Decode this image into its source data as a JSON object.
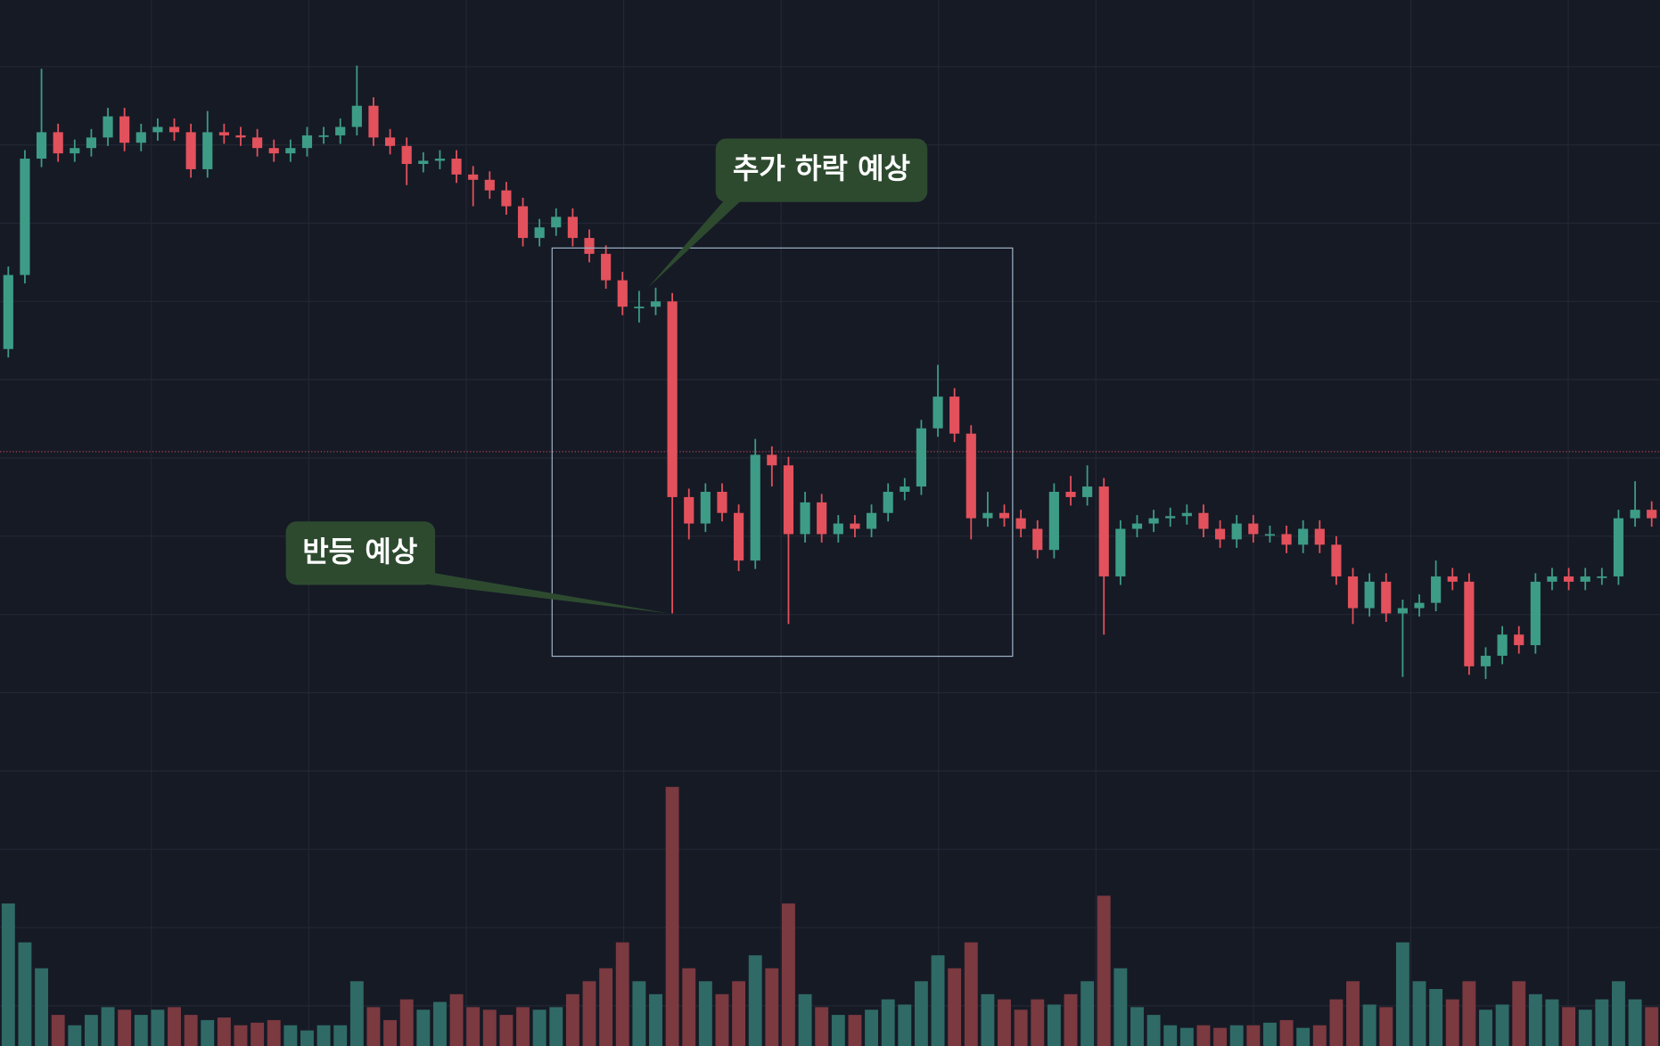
{
  "chart_data": {
    "type": "candlestick",
    "annotations": [
      "추가 하락 예상",
      "반등 예상"
    ],
    "open": [
      670,
      740,
      850,
      875,
      855,
      860,
      870,
      890,
      865,
      875,
      880,
      875,
      840,
      875,
      872,
      870,
      860,
      855,
      860,
      872,
      872,
      880,
      900,
      870,
      862,
      845,
      848,
      850,
      835,
      830,
      820,
      805,
      775,
      785,
      795,
      775,
      760,
      735,
      710,
      710,
      715,
      530,
      505,
      535,
      515,
      470,
      570,
      560,
      495,
      525,
      495,
      505,
      500,
      515,
      535,
      540,
      595,
      625,
      590,
      510,
      515,
      510,
      500,
      480,
      535,
      530,
      540,
      455,
      500,
      505,
      510,
      512,
      515,
      500,
      490,
      505,
      495,
      495,
      485,
      500,
      485,
      455,
      425,
      450,
      420,
      425,
      430,
      455,
      450,
      370,
      380,
      400,
      390,
      450,
      455,
      450,
      455,
      455,
      510,
      518
    ],
    "high": [
      748,
      858,
      935,
      883,
      868,
      878,
      898,
      898,
      883,
      888,
      888,
      883,
      895,
      883,
      880,
      878,
      868,
      868,
      880,
      880,
      888,
      938,
      908,
      878,
      870,
      856,
      858,
      858,
      843,
      838,
      828,
      813,
      793,
      803,
      803,
      783,
      768,
      743,
      725,
      728,
      723,
      538,
      543,
      543,
      523,
      585,
      578,
      568,
      535,
      533,
      513,
      513,
      523,
      543,
      548,
      603,
      655,
      633,
      598,
      535,
      523,
      518,
      508,
      543,
      550,
      560,
      548,
      508,
      513,
      518,
      520,
      523,
      523,
      508,
      513,
      513,
      503,
      503,
      508,
      508,
      493,
      463,
      458,
      458,
      433,
      438,
      470,
      463,
      458,
      388,
      408,
      408,
      458,
      463,
      463,
      463,
      463,
      518,
      545,
      526
    ],
    "low": [
      662,
      732,
      842,
      847,
      847,
      852,
      862,
      857,
      857,
      867,
      867,
      832,
      832,
      864,
      862,
      852,
      847,
      847,
      852,
      864,
      864,
      872,
      862,
      854,
      825,
      837,
      840,
      827,
      805,
      812,
      797,
      767,
      767,
      777,
      767,
      752,
      727,
      702,
      695,
      702,
      420,
      490,
      497,
      507,
      460,
      462,
      540,
      410,
      487,
      487,
      487,
      492,
      492,
      507,
      527,
      532,
      587,
      582,
      490,
      502,
      502,
      492,
      472,
      472,
      522,
      522,
      400,
      447,
      492,
      497,
      502,
      504,
      492,
      482,
      482,
      487,
      487,
      477,
      477,
      477,
      447,
      410,
      417,
      412,
      360,
      417,
      422,
      442,
      362,
      358,
      372,
      382,
      382,
      442,
      442,
      442,
      447,
      447,
      502,
      502
    ],
    "close": [
      740,
      850,
      875,
      855,
      860,
      870,
      890,
      865,
      875,
      880,
      875,
      840,
      875,
      872,
      870,
      860,
      855,
      860,
      872,
      872,
      880,
      900,
      870,
      862,
      845,
      848,
      850,
      835,
      830,
      820,
      805,
      775,
      785,
      795,
      775,
      760,
      735,
      710,
      710,
      715,
      530,
      505,
      535,
      515,
      470,
      570,
      560,
      495,
      525,
      495,
      505,
      500,
      515,
      535,
      540,
      595,
      625,
      590,
      510,
      515,
      510,
      500,
      480,
      535,
      530,
      540,
      455,
      500,
      505,
      510,
      512,
      515,
      500,
      490,
      505,
      495,
      495,
      485,
      500,
      485,
      455,
      425,
      450,
      420,
      425,
      430,
      455,
      450,
      370,
      380,
      400,
      390,
      450,
      455,
      450,
      455,
      455,
      510,
      518,
      510
    ],
    "volume": [
      55,
      40,
      30,
      12,
      8,
      12,
      15,
      14,
      12,
      14,
      15,
      12,
      10,
      11,
      8,
      9,
      10,
      8,
      6,
      8,
      8,
      25,
      15,
      10,
      18,
      14,
      17,
      20,
      15,
      14,
      12,
      15,
      14,
      15,
      20,
      25,
      30,
      40,
      25,
      20,
      100,
      30,
      25,
      20,
      25,
      35,
      30,
      55,
      20,
      15,
      12,
      12,
      14,
      18,
      16,
      25,
      35,
      30,
      40,
      20,
      18,
      14,
      18,
      16,
      20,
      25,
      58,
      30,
      15,
      12,
      8,
      7,
      8,
      7,
      8,
      8,
      9,
      10,
      7,
      8,
      18,
      25,
      16,
      15,
      40,
      25,
      22,
      18,
      25,
      14,
      16,
      25,
      20,
      18,
      15,
      14,
      18,
      25,
      18,
      15
    ],
    "ylim": [
      0,
      1000
    ],
    "volume_lim": [
      0,
      100
    ],
    "price_line": 573,
    "up_color": "#3d9c86",
    "down_color": "#e2515c",
    "volume_up_color": "#2f6a66",
    "volume_down_color": "#7b3940",
    "price_line_color": "#b2445a",
    "grid": true
  }
}
